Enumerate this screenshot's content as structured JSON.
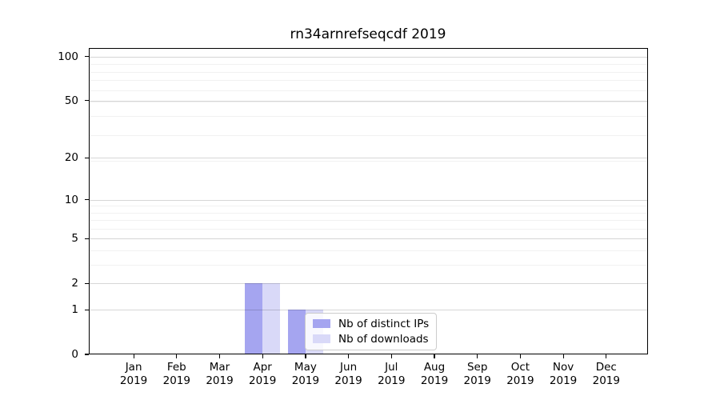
{
  "chart_data": {
    "type": "bar",
    "title": "rn34arnrefseqcdf 2019",
    "categories": [
      "Jan",
      "Feb",
      "Mar",
      "Apr",
      "May",
      "Jun",
      "Jul",
      "Aug",
      "Sep",
      "Oct",
      "Nov",
      "Dec"
    ],
    "x_year_label": "2019",
    "series": [
      {
        "name": "Nb of distinct IPs",
        "color": "#a5a5f0",
        "values": [
          0,
          0,
          0,
          2,
          1,
          0,
          0,
          0,
          0,
          0,
          0,
          0
        ]
      },
      {
        "name": "Nb of downloads",
        "color": "#d9d9f8",
        "values": [
          0,
          0,
          0,
          2,
          1,
          0,
          0,
          0,
          0,
          0,
          0,
          0
        ]
      }
    ],
    "yscale": "log1p",
    "yticks": [
      0,
      1,
      2,
      5,
      10,
      20,
      50,
      100
    ],
    "minor_grid_values": [
      3,
      4,
      6,
      7,
      8,
      9,
      19,
      29,
      39,
      49,
      59,
      69,
      79,
      89
    ],
    "ylim": [
      0,
      115
    ],
    "grid": "both",
    "legend": {
      "entries": [
        "Nb of distinct IPs",
        "Nb of downloads"
      ],
      "position": "inside-lower-center"
    }
  },
  "colors": {
    "bar_distinct_ips": "#a5a5f0",
    "bar_downloads": "#d9d9f8",
    "major_grid": "rgba(0,0,0,0.16)",
    "minor_grid": "rgba(0,0,0,0.055)",
    "axis": "#000000",
    "legend_border": "#cccccc",
    "legend_background": "rgba(255,255,255,0.8)"
  }
}
